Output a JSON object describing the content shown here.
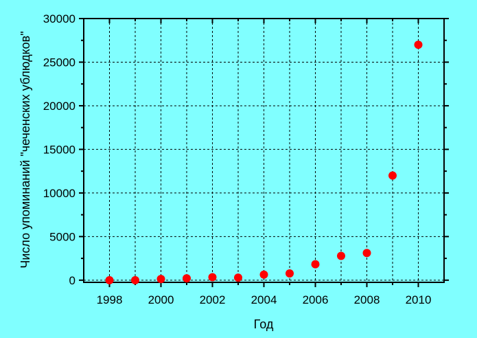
{
  "chart_data": {
    "type": "scatter",
    "title": "",
    "xlabel": "Год",
    "ylabel": "Число упоминаний \"чеченских ублюдков\"",
    "xlim": [
      1997,
      2011
    ],
    "ylim": [
      -250,
      30000
    ],
    "xticks": [
      1998,
      2000,
      2002,
      2004,
      2006,
      2008,
      2010
    ],
    "yticks": [
      0,
      5000,
      10000,
      15000,
      20000,
      25000,
      30000
    ],
    "grid": true,
    "x": [
      1998,
      1999,
      2000,
      2001,
      2002,
      2003,
      2004,
      2005,
      2006,
      2007,
      2008,
      2009,
      2010
    ],
    "y": [
      0,
      0,
      130,
      210,
      345,
      290,
      640,
      770,
      1830,
      2780,
      3120,
      12000,
      27000
    ],
    "colors": {
      "background": "#80ffff",
      "marker": "#ff0000",
      "axis": "#000000"
    }
  }
}
